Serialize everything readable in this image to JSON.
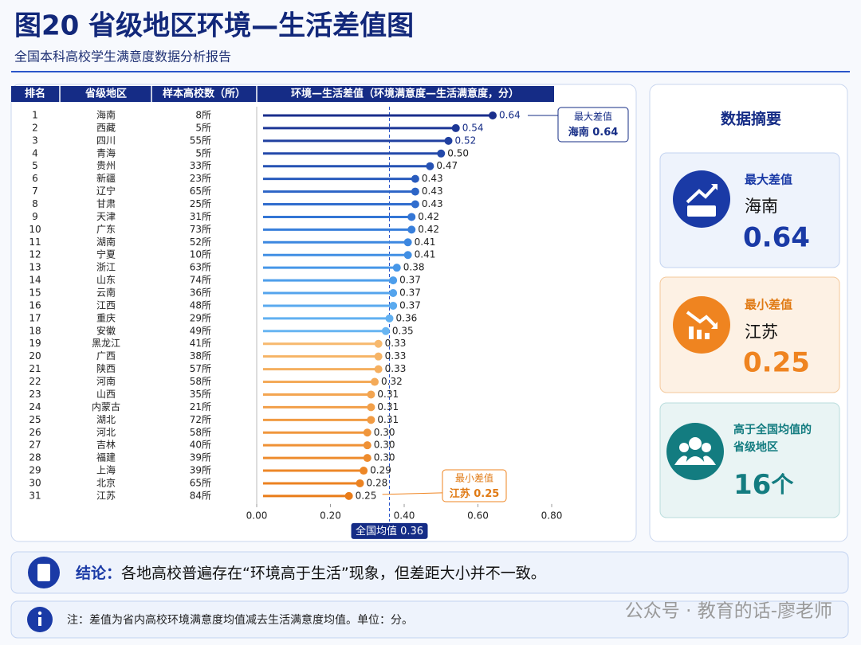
{
  "header": {
    "title": "图20 省级地区环境—生活差值图",
    "subtitle": "全国本科高校学生满意度数据分析报告"
  },
  "chart_data": {
    "type": "lollipop",
    "columns": [
      "排名",
      "省级地区",
      "样本高校数（所）",
      "环境—生活差值（环境满意度—生活满意度，分）"
    ],
    "ranks": [
      1,
      2,
      3,
      4,
      5,
      6,
      7,
      8,
      9,
      10,
      11,
      12,
      13,
      14,
      15,
      16,
      17,
      18,
      19,
      20,
      21,
      22,
      23,
      24,
      25,
      26,
      27,
      28,
      29,
      30,
      31
    ],
    "categories": [
      "海南",
      "西藏",
      "四川",
      "青海",
      "贵州",
      "新疆",
      "辽宁",
      "甘肃",
      "天津",
      "广东",
      "湖南",
      "宁夏",
      "浙江",
      "山东",
      "云南",
      "江西",
      "重庆",
      "安徽",
      "黑龙江",
      "广西",
      "陕西",
      "河南",
      "山西",
      "内蒙古",
      "湖北",
      "河北",
      "吉林",
      "福建",
      "上海",
      "北京",
      "江苏"
    ],
    "samples": [
      "8所",
      "5所",
      "55所",
      "5所",
      "33所",
      "23所",
      "65所",
      "25所",
      "31所",
      "73所",
      "52所",
      "10所",
      "63所",
      "74所",
      "36所",
      "48所",
      "29所",
      "49所",
      "41所",
      "38所",
      "57所",
      "58所",
      "35所",
      "21所",
      "72所",
      "58所",
      "40所",
      "39所",
      "39所",
      "65所",
      "84所"
    ],
    "values": [
      0.64,
      0.54,
      0.52,
      0.5,
      0.47,
      0.43,
      0.43,
      0.43,
      0.42,
      0.42,
      0.41,
      0.41,
      0.38,
      0.37,
      0.37,
      0.37,
      0.36,
      0.35,
      0.33,
      0.33,
      0.33,
      0.32,
      0.31,
      0.31,
      0.31,
      0.3,
      0.3,
      0.3,
      0.29,
      0.28,
      0.25
    ],
    "value_labels": [
      "0.64",
      "0.54",
      "0.52",
      "0.50",
      "0.47",
      "0.43",
      "0.43",
      "0.43",
      "0.42",
      "0.42",
      "0.41",
      "0.41",
      "0.38",
      "0.37",
      "0.37",
      "0.37",
      "0.36",
      "0.35",
      "0.33",
      "0.33",
      "0.33",
      "0.32",
      "0.31",
      "0.31",
      "0.31",
      "0.30",
      "0.30",
      "0.30",
      "0.29",
      "0.28",
      "0.25"
    ],
    "colors": [
      "#1a2e8c",
      "#1d3796",
      "#2040a0",
      "#2349aa",
      "#2652b4",
      "#295bbd",
      "#2c64c6",
      "#306dce",
      "#3476d5",
      "#387fdb",
      "#3c87e0",
      "#418fe4",
      "#4797e8",
      "#4d9eeb",
      "#54a4ed",
      "#5aaaef",
      "#61b0f1",
      "#68b5f2",
      "#f7b96e",
      "#f6b466",
      "#f5af5f",
      "#f4aa58",
      "#f3a551",
      "#f2a04a",
      "#f19b43",
      "#f0963c",
      "#ef9135",
      "#ee8c2e",
      "#ed8727",
      "#ec8220",
      "#e97c19"
    ],
    "xlim": [
      0,
      0.8
    ],
    "xticks": [
      {
        "value": 0,
        "label": "0.00"
      },
      {
        "value": 0.2,
        "label": "0.20"
      },
      {
        "value": 0.4,
        "label": "0.40"
      },
      {
        "value": 0.6,
        "label": "0.60"
      },
      {
        "value": 0.8,
        "label": "0.80"
      }
    ],
    "mean": {
      "label": "全国均值",
      "value": 0.36
    }
  },
  "summary": {
    "title": "数据摘要",
    "cards": [
      {
        "title": [
          "最大差值"
        ],
        "name": "海南",
        "value": 0.64
      },
      {
        "title": [
          "最小差值"
        ],
        "name": "江苏",
        "value": 0.25
      },
      {
        "title": [
          "高于全国均值的",
          "省级地区"
        ],
        "value": 16,
        "unit": "个"
      }
    ]
  },
  "conclusion": {
    "label": "结论：",
    "text": "各地高校普遍存在“环境高于生活”现象，但差距大小并不一致。"
  },
  "note": "注：差值为省内高校环境满意度均值减去生活满意度均值。单位：分。",
  "watermark": "公众号 · 教育的话-廖老师"
}
